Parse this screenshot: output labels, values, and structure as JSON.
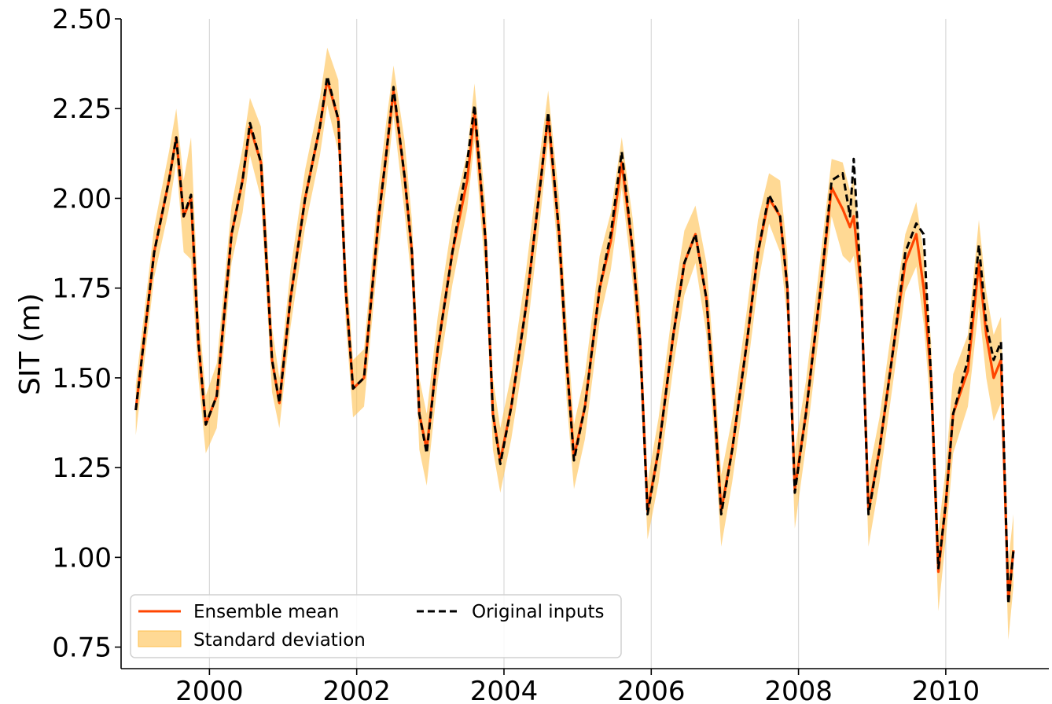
{
  "chart_data": {
    "type": "line",
    "title": "",
    "xlabel": "",
    "ylabel": "SIT (m)",
    "xlim": [
      1998.8,
      2011.4
    ],
    "ylim": [
      0.69,
      2.5
    ],
    "x_ticks": [
      2000,
      2002,
      2004,
      2006,
      2008,
      2010
    ],
    "x_tick_labels": [
      "2000",
      "2002",
      "2004",
      "2006",
      "2008",
      "2010"
    ],
    "y_ticks": [
      0.75,
      1.0,
      1.25,
      1.5,
      1.75,
      2.0,
      2.25,
      2.5
    ],
    "y_tick_labels": [
      "0.75",
      "1.00",
      "1.25",
      "1.50",
      "1.75",
      "2.00",
      "2.25",
      "2.50"
    ],
    "grid": "vertical",
    "legend_position": "lower-left",
    "legend": {
      "ensemble_mean": "Ensemble mean",
      "standard_deviation": "Standard deviation",
      "original_inputs": "Original inputs"
    },
    "colors": {
      "ensemble_mean": "#ff4500",
      "standard_deviation": "#ffc04d",
      "original_inputs": "#000000"
    },
    "x": [
      1999.0,
      1999.25,
      1999.45,
      1999.55,
      1999.65,
      1999.75,
      1999.85,
      1999.95,
      2000.1,
      2000.3,
      2000.45,
      2000.55,
      2000.7,
      2000.85,
      2000.95,
      2001.1,
      2001.3,
      2001.5,
      2001.6,
      2001.75,
      2001.85,
      2001.95,
      2002.1,
      2002.3,
      2002.4,
      2002.5,
      2002.65,
      2002.75,
      2002.85,
      2002.95,
      2003.1,
      2003.3,
      2003.5,
      2003.6,
      2003.75,
      2003.85,
      2003.95,
      2004.1,
      2004.3,
      2004.5,
      2004.6,
      2004.75,
      2004.85,
      2004.95,
      2005.1,
      2005.3,
      2005.45,
      2005.6,
      2005.75,
      2005.85,
      2005.95,
      2006.1,
      2006.3,
      2006.45,
      2006.6,
      2006.75,
      2006.85,
      2006.95,
      2007.1,
      2007.3,
      2007.45,
      2007.6,
      2007.75,
      2007.85,
      2007.95,
      2008.1,
      2008.3,
      2008.45,
      2008.6,
      2008.7,
      2008.75,
      2008.85,
      2008.95,
      2009.1,
      2009.3,
      2009.45,
      2009.6,
      2009.7,
      2009.8,
      2009.9,
      2010.0,
      2010.1,
      2010.3,
      2010.45,
      2010.55,
      2010.65,
      2010.75,
      2010.85,
      2010.92
    ],
    "series": [
      {
        "name": "Original inputs",
        "values": [
          1.41,
          1.85,
          2.05,
          2.17,
          1.95,
          2.01,
          1.6,
          1.37,
          1.45,
          1.9,
          2.05,
          2.21,
          2.1,
          1.55,
          1.43,
          1.72,
          2.0,
          2.2,
          2.34,
          2.22,
          1.75,
          1.47,
          1.5,
          1.95,
          2.12,
          2.31,
          2.06,
          1.85,
          1.4,
          1.29,
          1.58,
          1.85,
          2.1,
          2.26,
          1.88,
          1.4,
          1.26,
          1.42,
          1.7,
          2.05,
          2.24,
          1.9,
          1.55,
          1.27,
          1.42,
          1.75,
          1.9,
          2.13,
          1.85,
          1.6,
          1.12,
          1.3,
          1.62,
          1.82,
          1.9,
          1.72,
          1.45,
          1.12,
          1.3,
          1.6,
          1.85,
          2.01,
          1.95,
          1.75,
          1.18,
          1.4,
          1.75,
          2.05,
          2.07,
          1.95,
          2.11,
          1.75,
          1.12,
          1.3,
          1.6,
          1.85,
          1.93,
          1.9,
          1.5,
          0.97,
          1.15,
          1.4,
          1.55,
          1.87,
          1.65,
          1.55,
          1.6,
          0.87,
          1.02
        ]
      },
      {
        "name": "Ensemble mean",
        "values": [
          1.41,
          1.85,
          2.05,
          2.17,
          1.95,
          2.0,
          1.6,
          1.37,
          1.45,
          1.9,
          2.05,
          2.2,
          2.1,
          1.55,
          1.43,
          1.72,
          2.0,
          2.2,
          2.33,
          2.22,
          1.75,
          1.47,
          1.5,
          1.95,
          2.12,
          2.3,
          2.06,
          1.85,
          1.4,
          1.3,
          1.58,
          1.85,
          2.05,
          2.24,
          1.88,
          1.4,
          1.27,
          1.42,
          1.7,
          2.05,
          2.23,
          1.9,
          1.55,
          1.28,
          1.42,
          1.75,
          1.88,
          2.1,
          1.85,
          1.6,
          1.13,
          1.3,
          1.62,
          1.82,
          1.9,
          1.72,
          1.45,
          1.13,
          1.3,
          1.6,
          1.85,
          2.0,
          1.95,
          1.75,
          1.19,
          1.4,
          1.75,
          2.03,
          1.97,
          1.92,
          1.95,
          1.75,
          1.13,
          1.3,
          1.6,
          1.82,
          1.9,
          1.75,
          1.5,
          0.96,
          1.15,
          1.4,
          1.52,
          1.82,
          1.62,
          1.5,
          1.55,
          0.88,
          1.02
        ]
      },
      {
        "name": "Standard deviation",
        "lower": [
          1.34,
          1.78,
          1.97,
          2.1,
          1.85,
          1.83,
          1.5,
          1.29,
          1.36,
          1.82,
          1.96,
          2.12,
          2.0,
          1.46,
          1.36,
          1.64,
          1.92,
          2.12,
          2.26,
          2.13,
          1.66,
          1.39,
          1.42,
          1.86,
          2.03,
          2.23,
          1.96,
          1.76,
          1.3,
          1.2,
          1.49,
          1.76,
          1.97,
          2.16,
          1.78,
          1.3,
          1.18,
          1.33,
          1.6,
          1.96,
          2.16,
          1.8,
          1.44,
          1.19,
          1.33,
          1.66,
          1.8,
          2.03,
          1.76,
          1.5,
          1.05,
          1.21,
          1.53,
          1.73,
          1.82,
          1.62,
          1.35,
          1.03,
          1.21,
          1.51,
          1.76,
          1.93,
          1.85,
          1.66,
          1.08,
          1.31,
          1.66,
          1.95,
          1.84,
          1.82,
          1.84,
          1.66,
          1.03,
          1.21,
          1.51,
          1.74,
          1.81,
          1.65,
          1.4,
          0.85,
          1.05,
          1.29,
          1.42,
          1.7,
          1.5,
          1.38,
          1.43,
          0.77,
          0.92
        ],
        "upper": [
          1.48,
          1.92,
          2.13,
          2.25,
          2.05,
          2.17,
          1.7,
          1.45,
          1.54,
          1.98,
          2.14,
          2.28,
          2.2,
          1.64,
          1.5,
          1.8,
          2.08,
          2.28,
          2.42,
          2.33,
          1.84,
          1.55,
          1.58,
          2.04,
          2.21,
          2.37,
          2.16,
          1.94,
          1.5,
          1.4,
          1.67,
          1.94,
          2.13,
          2.32,
          1.98,
          1.5,
          1.36,
          1.51,
          1.8,
          2.14,
          2.3,
          2.0,
          1.66,
          1.37,
          1.51,
          1.84,
          1.96,
          2.17,
          1.94,
          1.7,
          1.21,
          1.39,
          1.71,
          1.91,
          1.98,
          1.82,
          1.55,
          1.23,
          1.39,
          1.69,
          1.94,
          2.07,
          2.05,
          1.84,
          1.3,
          1.49,
          1.84,
          2.11,
          2.1,
          2.02,
          2.06,
          1.84,
          1.23,
          1.39,
          1.69,
          1.9,
          1.99,
          1.85,
          1.6,
          1.07,
          1.25,
          1.51,
          1.62,
          1.94,
          1.74,
          1.62,
          1.67,
          0.99,
          1.12
        ]
      }
    ]
  }
}
